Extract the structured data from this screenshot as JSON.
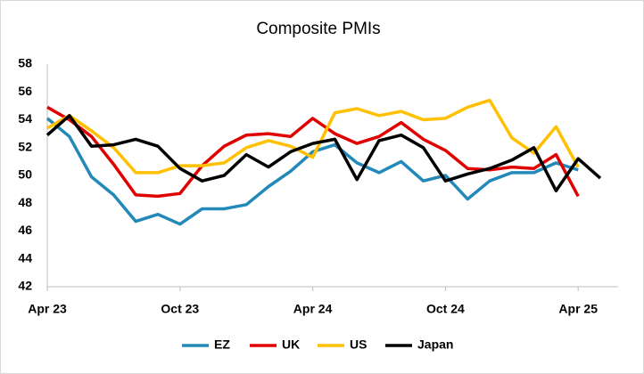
{
  "chart_data": {
    "type": "line",
    "title": "Composite PMIs",
    "categories": [
      "Apr 23",
      null,
      null,
      null,
      null,
      null,
      "Oct 23",
      null,
      null,
      null,
      null,
      null,
      "Apr 24",
      null,
      null,
      null,
      null,
      null,
      "Oct 24",
      null,
      null,
      null,
      null,
      null,
      "Apr 25",
      null
    ],
    "series": [
      {
        "name": "EZ",
        "color": "#2389b8",
        "values": [
          54.1,
          52.8,
          49.9,
          48.6,
          46.7,
          47.2,
          46.5,
          47.6,
          47.6,
          47.9,
          49.2,
          50.3,
          51.7,
          52.2,
          50.9,
          50.2,
          51.0,
          49.6,
          50.0,
          48.3,
          49.6,
          50.2,
          50.2,
          50.9,
          50.4,
          null
        ]
      },
      {
        "name": "UK",
        "color": "#e00000",
        "values": [
          54.9,
          54.0,
          52.8,
          50.8,
          48.6,
          48.5,
          48.7,
          50.7,
          52.1,
          52.9,
          53.0,
          52.8,
          54.1,
          53.0,
          52.3,
          52.8,
          53.8,
          52.6,
          51.8,
          50.5,
          50.4,
          50.6,
          50.5,
          51.5,
          48.5,
          null
        ]
      },
      {
        "name": "US",
        "color": "#ffc000",
        "values": [
          53.4,
          54.3,
          53.2,
          52.0,
          50.2,
          50.2,
          50.7,
          50.7,
          50.9,
          52.0,
          52.5,
          52.1,
          51.3,
          54.5,
          54.8,
          54.3,
          54.6,
          54.0,
          54.1,
          54.9,
          55.4,
          52.7,
          51.6,
          53.5,
          50.6,
          null
        ]
      },
      {
        "name": "Japan",
        "color": "#000000",
        "values": [
          52.9,
          54.3,
          52.1,
          52.2,
          52.6,
          52.1,
          50.5,
          49.6,
          50.0,
          51.5,
          50.6,
          51.7,
          52.3,
          52.6,
          49.7,
          52.5,
          52.9,
          52.0,
          49.6,
          50.1,
          50.5,
          51.1,
          52.0,
          48.9,
          51.2,
          49.8
        ]
      }
    ],
    "ylim": [
      42,
      58
    ],
    "yticks": [
      42,
      44,
      46,
      48,
      50,
      52,
      54,
      56,
      58
    ],
    "grid": false,
    "legend": "bottom"
  }
}
